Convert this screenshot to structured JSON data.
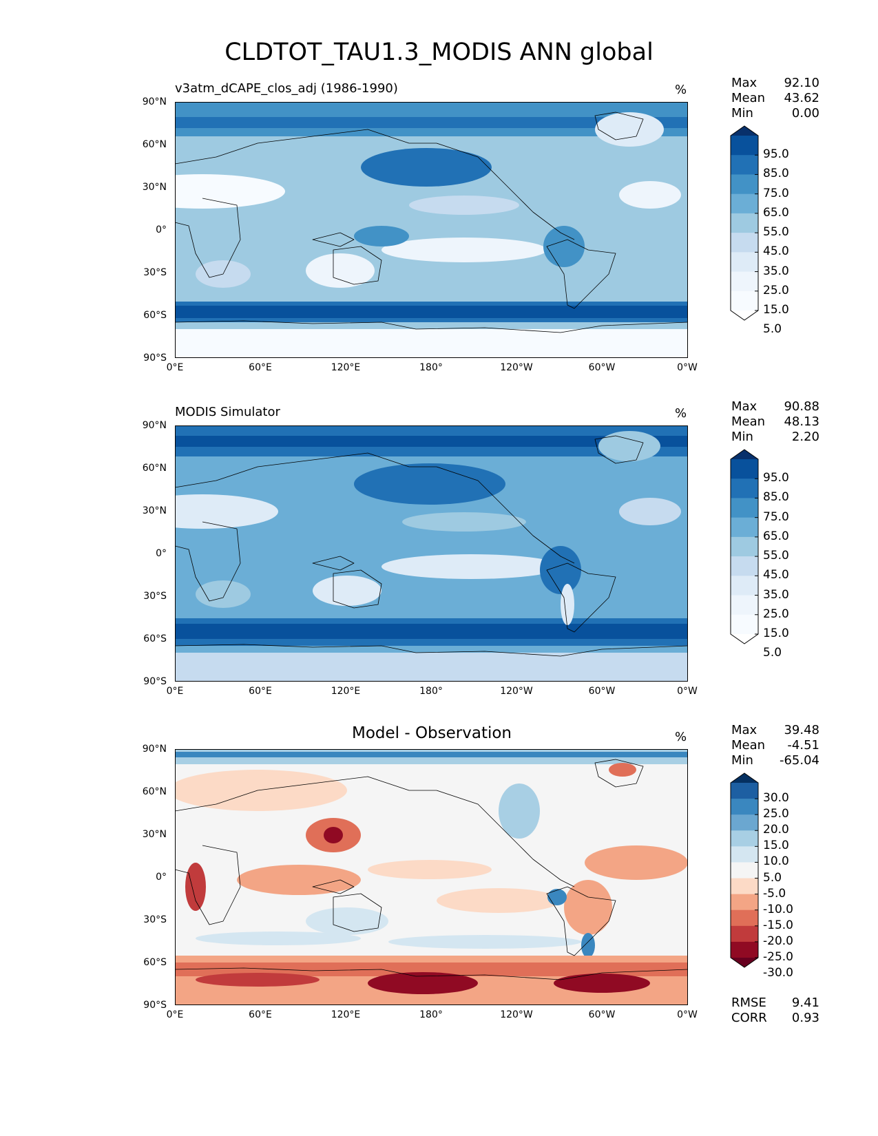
{
  "figure": {
    "title": "CLDTOT_TAU1.3_MODIS ANN global"
  },
  "axes": {
    "lat_labels": [
      "90°N",
      "60°N",
      "30°N",
      "0°",
      "30°S",
      "60°S",
      "90°S"
    ],
    "lon_labels": [
      "0°E",
      "60°E",
      "120°E",
      "180°",
      "120°W",
      "60°W",
      "0°W"
    ]
  },
  "panels": [
    {
      "title": "v3atm_dCAPE_clos_adj (1986-1990)",
      "units": "%",
      "stats": {
        "max_label": "Max",
        "max": "92.10",
        "mean_label": "Mean",
        "mean": "43.62",
        "min_label": "Min",
        "min": "0.00"
      },
      "colorbar": {
        "labels": [
          "95.0",
          "85.0",
          "75.0",
          "65.0",
          "55.0",
          "45.0",
          "35.0",
          "25.0",
          "15.0",
          "5.0"
        ],
        "colors": [
          "#08306b",
          "#08519c",
          "#2171b5",
          "#4292c6",
          "#6baed6",
          "#9ecae1",
          "#c6dbef",
          "#deebf7",
          "#eef5fc",
          "#f7fbff",
          "#ffffff"
        ]
      }
    },
    {
      "title": "MODIS Simulator",
      "units": "%",
      "stats": {
        "max_label": "Max",
        "max": "90.88",
        "mean_label": "Mean",
        "mean": "48.13",
        "min_label": "Min",
        "min": "2.20"
      },
      "colorbar": {
        "labels": [
          "95.0",
          "85.0",
          "75.0",
          "65.0",
          "55.0",
          "45.0",
          "35.0",
          "25.0",
          "15.0",
          "5.0"
        ],
        "colors": [
          "#08306b",
          "#08519c",
          "#2171b5",
          "#4292c6",
          "#6baed6",
          "#9ecae1",
          "#c6dbef",
          "#deebf7",
          "#eef5fc",
          "#f7fbff",
          "#ffffff"
        ]
      }
    },
    {
      "title": "Model - Observation",
      "units": "%",
      "stats": {
        "max_label": "Max",
        "max": "39.48",
        "mean_label": "Mean",
        "mean": "-4.51",
        "min_label": "Min",
        "min": "-65.04"
      },
      "colorbar": {
        "labels": [
          "30.0",
          "25.0",
          "20.0",
          "15.0",
          "10.0",
          "5.0",
          "-5.0",
          "-10.0",
          "-15.0",
          "-20.0",
          "-25.0",
          "-30.0"
        ],
        "colors": [
          "#053061",
          "#1d5fa2",
          "#3a87bf",
          "#6ba7d0",
          "#a8cfe4",
          "#d4e6f1",
          "#f5f5f5",
          "#fcdac6",
          "#f3a585",
          "#e06f58",
          "#c13b3c",
          "#900a23",
          "#67001f"
        ]
      },
      "errors": {
        "rmse_label": "RMSE",
        "rmse": "9.41",
        "corr_label": "CORR",
        "corr": "0.93"
      }
    }
  ]
}
